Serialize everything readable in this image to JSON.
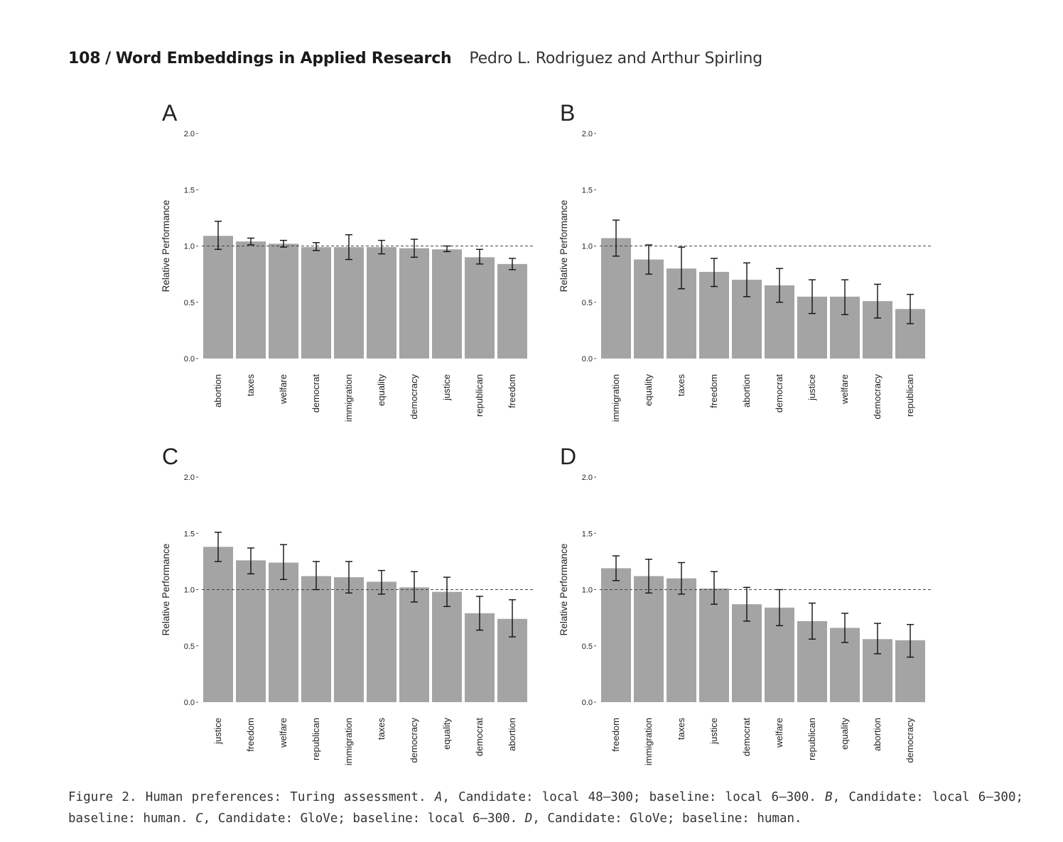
{
  "header": {
    "page_number": "108",
    "separator": "/",
    "journal": "Word Embeddings in Applied Research",
    "authors": "Pedro L. Rodriguez and Arthur Spirling"
  },
  "caption": {
    "prefix": "Figure 2. Human preferences: Turing assessment.",
    "parts": [
      {
        "letter": "A",
        "text": ", Candidate: local 48–300; baseline: local 6–300."
      },
      {
        "letter": "B",
        "text": ", Candidate: local 6–300; baseline: human."
      },
      {
        "letter": "C",
        "text": ", Candidate: GloVe; baseline: local 6–300."
      },
      {
        "letter": "D",
        "text": ", Candidate: GloVe; baseline: human."
      }
    ]
  },
  "colors": {
    "bar": "#a4a4a4",
    "axis": "#555555",
    "text": "#222222",
    "reference_line": "#444444"
  },
  "chart_data": [
    {
      "type": "bar",
      "panel": "A",
      "ylabel": "Relative Performance",
      "ylim": [
        0,
        2
      ],
      "yticks": [
        "0.0",
        "0.5",
        "1.0",
        "1.5",
        "2.0"
      ],
      "reference_line": 1.0,
      "categories": [
        "abortion",
        "taxes",
        "welfare",
        "democrat",
        "immigration",
        "equality",
        "democracy",
        "justice",
        "republican",
        "freedom"
      ],
      "values": [
        1.09,
        1.04,
        1.02,
        0.99,
        0.99,
        0.99,
        0.98,
        0.97,
        0.9,
        0.84
      ],
      "error_low": [
        0.97,
        1.01,
        0.99,
        0.96,
        0.88,
        0.93,
        0.9,
        0.95,
        0.84,
        0.79
      ],
      "error_high": [
        1.22,
        1.07,
        1.05,
        1.03,
        1.1,
        1.05,
        1.06,
        1.0,
        0.97,
        0.89
      ]
    },
    {
      "type": "bar",
      "panel": "B",
      "ylabel": "Relative Performance",
      "ylim": [
        0,
        2
      ],
      "yticks": [
        "0.0",
        "0.5",
        "1.0",
        "1.5",
        "2.0"
      ],
      "reference_line": 1.0,
      "categories": [
        "immigration",
        "equality",
        "taxes",
        "freedom",
        "abortion",
        "democrat",
        "justice",
        "welfare",
        "democracy",
        "republican"
      ],
      "values": [
        1.07,
        0.88,
        0.8,
        0.77,
        0.7,
        0.65,
        0.55,
        0.55,
        0.51,
        0.44
      ],
      "error_low": [
        0.91,
        0.75,
        0.62,
        0.64,
        0.55,
        0.5,
        0.4,
        0.39,
        0.36,
        0.31
      ],
      "error_high": [
        1.23,
        1.01,
        0.99,
        0.89,
        0.85,
        0.8,
        0.7,
        0.7,
        0.66,
        0.57
      ]
    },
    {
      "type": "bar",
      "panel": "C",
      "ylabel": "Relative Performance",
      "ylim": [
        0,
        2
      ],
      "yticks": [
        "0.0",
        "0.5",
        "1.0",
        "1.5",
        "2.0"
      ],
      "reference_line": 1.0,
      "categories": [
        "justice",
        "freedom",
        "welfare",
        "republican",
        "immigration",
        "taxes",
        "democracy",
        "equality",
        "democrat",
        "abortion"
      ],
      "values": [
        1.38,
        1.26,
        1.24,
        1.12,
        1.11,
        1.07,
        1.02,
        0.98,
        0.79,
        0.74
      ],
      "error_low": [
        1.25,
        1.14,
        1.09,
        1.0,
        0.97,
        0.96,
        0.89,
        0.85,
        0.64,
        0.58
      ],
      "error_high": [
        1.51,
        1.37,
        1.4,
        1.25,
        1.25,
        1.17,
        1.16,
        1.11,
        0.94,
        0.91
      ]
    },
    {
      "type": "bar",
      "panel": "D",
      "ylabel": "Relative Performance",
      "ylim": [
        0,
        2
      ],
      "yticks": [
        "0.0",
        "0.5",
        "1.0",
        "1.5",
        "2.0"
      ],
      "reference_line": 1.0,
      "categories": [
        "freedom",
        "immigration",
        "taxes",
        "justice",
        "democrat",
        "welfare",
        "republican",
        "equality",
        "abortion",
        "democracy"
      ],
      "values": [
        1.19,
        1.12,
        1.1,
        1.01,
        0.87,
        0.84,
        0.72,
        0.66,
        0.56,
        0.55
      ],
      "error_low": [
        1.08,
        0.97,
        0.96,
        0.87,
        0.72,
        0.68,
        0.56,
        0.53,
        0.43,
        0.4
      ],
      "error_high": [
        1.3,
        1.27,
        1.24,
        1.16,
        1.02,
        1.0,
        0.88,
        0.79,
        0.7,
        0.69
      ]
    }
  ]
}
